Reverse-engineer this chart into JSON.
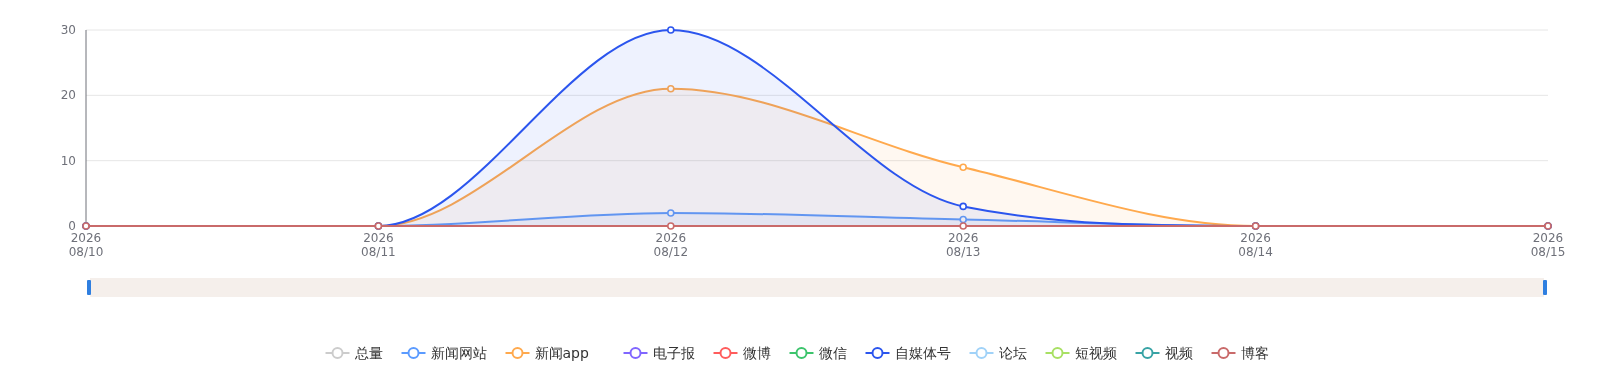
{
  "chart_data": {
    "type": "line",
    "categories": [
      "2026\n08/10",
      "2026\n08/11",
      "2026\n08/12",
      "2026\n08/13",
      "2026\n08/14",
      "2026\n08/15"
    ],
    "ylim": [
      0,
      30
    ],
    "yticks": [
      0,
      10,
      20,
      30
    ],
    "grid": "y",
    "legend": "bottom",
    "marker": "circle",
    "line_style": "solid",
    "series": [
      {
        "name": "总量",
        "color": "#cccccc",
        "values": [
          null,
          null,
          null,
          null,
          null,
          null
        ]
      },
      {
        "name": "新闻网站",
        "type": "area",
        "color": "#5b9bff",
        "values": [
          0,
          0,
          2,
          1,
          0,
          0
        ]
      },
      {
        "name": "新闻app",
        "type": "area",
        "color": "#ffa94d",
        "values": [
          0,
          0,
          21,
          9,
          0,
          0
        ]
      },
      {
        "name": "电子报",
        "color": "#8066ff",
        "values": [
          null,
          null,
          null,
          null,
          null,
          null
        ]
      },
      {
        "name": "微博",
        "color": "#ff5c5c",
        "values": [
          null,
          null,
          null,
          null,
          null,
          null
        ]
      },
      {
        "name": "微信",
        "color": "#3cc46c",
        "values": [
          null,
          null,
          null,
          null,
          null,
          null
        ]
      },
      {
        "name": "自媒体号",
        "type": "area",
        "color": "#2b55ee",
        "values": [
          0,
          0,
          30,
          3,
          0,
          0
        ]
      },
      {
        "name": "论坛",
        "color": "#a0d2f8",
        "values": [
          null,
          null,
          null,
          null,
          null,
          null
        ]
      },
      {
        "name": "短视频",
        "color": "#a8e063",
        "values": [
          null,
          null,
          null,
          null,
          null,
          null
        ]
      },
      {
        "name": "视频",
        "color": "#38a3a5",
        "values": [
          null,
          null,
          null,
          null,
          null,
          null
        ]
      },
      {
        "name": "博客",
        "color": "#c96a6a",
        "values": [
          0,
          0,
          0,
          0,
          0,
          0
        ]
      }
    ]
  }
}
